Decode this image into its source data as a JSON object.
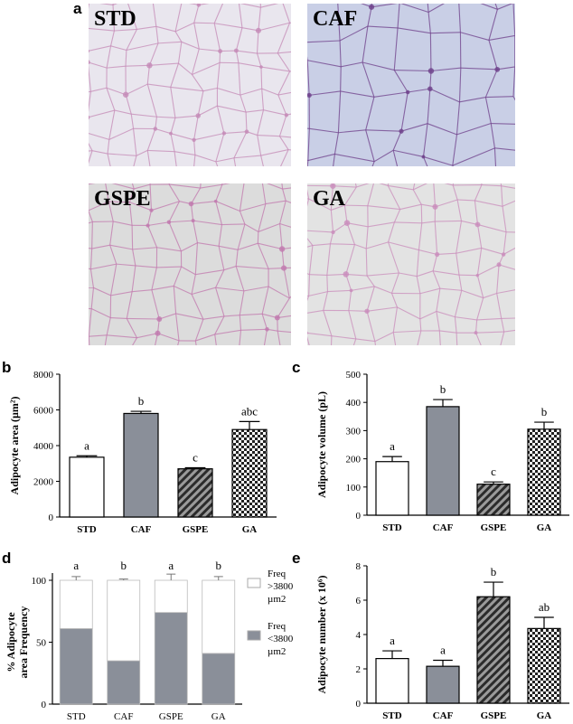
{
  "panels": {
    "a": "a",
    "b": "b",
    "c": "c",
    "d": "d",
    "e": "e"
  },
  "micrographs": [
    {
      "label": "STD",
      "tint": "#e9e6ee",
      "membrane": "#c48ab6"
    },
    {
      "label": "CAF",
      "tint": "#c9cfe6",
      "membrane": "#6d3f8a"
    },
    {
      "label": "GSPE",
      "tint": "#dcdcdc",
      "membrane": "#c178ae"
    },
    {
      "label": "GA",
      "tint": "#e3e3e3",
      "membrane": "#c98cbb"
    }
  ],
  "chart_data": [
    {
      "panel": "b",
      "type": "bar",
      "categories": [
        "STD",
        "CAF",
        "GSPE",
        "GA"
      ],
      "values": [
        3350,
        5800,
        2700,
        4900
      ],
      "errors": [
        80,
        120,
        60,
        450
      ],
      "letters": [
        "a",
        "b",
        "c",
        "abc"
      ],
      "patterns": [
        "white",
        "gray",
        "diagonal",
        "checker"
      ],
      "ylabel": "Adipocyte area (µm²)",
      "ylim": [
        0,
        8000
      ],
      "yticks": [
        "0",
        "2000",
        "4000",
        "6000",
        "8000"
      ]
    },
    {
      "panel": "c",
      "type": "bar",
      "categories": [
        "STD",
        "CAF",
        "GSPE",
        "GA"
      ],
      "values": [
        190,
        385,
        110,
        305
      ],
      "errors": [
        18,
        25,
        8,
        25
      ],
      "letters": [
        "a",
        "b",
        "c",
        "b"
      ],
      "patterns": [
        "white",
        "gray",
        "diagonal",
        "checker"
      ],
      "ylabel": "Adipocyte volume (pL)",
      "ylim": [
        0,
        500
      ],
      "yticks": [
        "0",
        "100",
        "200",
        "300",
        "400",
        "500"
      ]
    },
    {
      "panel": "d",
      "type": "bar",
      "stacked": true,
      "categories": [
        "STD",
        "CAF",
        "GSPE",
        "GA"
      ],
      "series": [
        {
          "name": "Freq <3800 µm2",
          "values": [
            61,
            35,
            74,
            41
          ]
        },
        {
          "name": "Freq >3800 µm2",
          "values": [
            39,
            65,
            26,
            59
          ]
        }
      ],
      "errors": [
        3,
        1,
        5,
        3
      ],
      "letters": [
        "a",
        "b",
        "a",
        "b"
      ],
      "ylabel": "% Adipocyte area Frequency",
      "ylim": [
        0,
        100
      ],
      "yticks": [
        "0",
        "50",
        "100"
      ],
      "legend_top": [
        "Freq",
        ">3800",
        "µm2"
      ],
      "legend_bottom": [
        "Freq",
        "<3800",
        "µm2"
      ]
    },
    {
      "panel": "e",
      "type": "bar",
      "categories": [
        "STD",
        "CAF",
        "GSPE",
        "GA"
      ],
      "values": [
        2.6,
        2.15,
        6.2,
        4.35
      ],
      "errors": [
        0.45,
        0.35,
        0.85,
        0.65
      ],
      "letters": [
        "a",
        "a",
        "b",
        "ab"
      ],
      "patterns": [
        "white",
        "gray",
        "diagonal",
        "checker"
      ],
      "ylabel": "Adipocyte number (x 10⁶)",
      "ylim": [
        0,
        8
      ],
      "yticks": [
        "0",
        "2",
        "4",
        "6",
        "8"
      ]
    }
  ]
}
